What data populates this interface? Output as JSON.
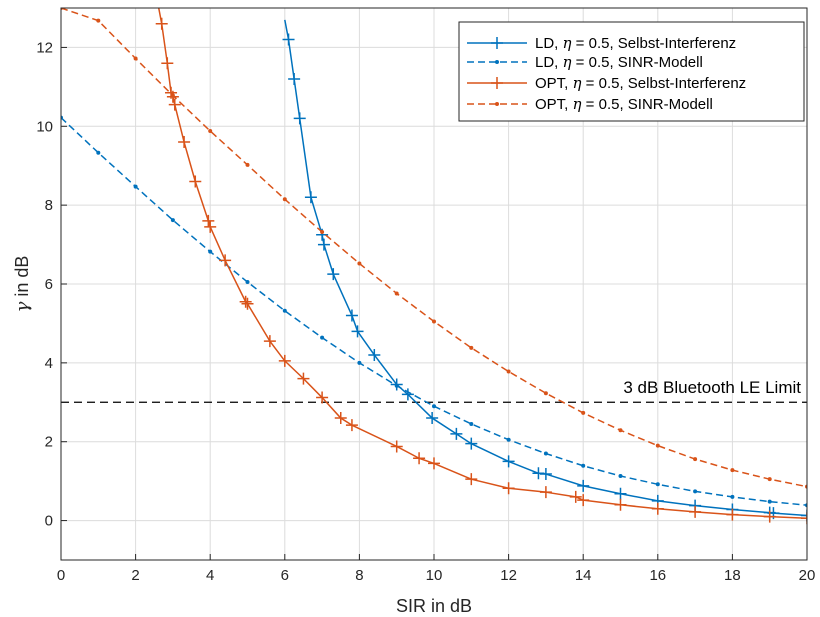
{
  "chart_data": {
    "type": "line",
    "xlabel": "SIR in dB",
    "ylabel_symbol": "γ",
    "ylabel_text": " in dB",
    "xlim": [
      0,
      20
    ],
    "ylim": [
      -1,
      13
    ],
    "xticks": [
      "0",
      "2",
      "4",
      "6",
      "8",
      "10",
      "12",
      "14",
      "16",
      "18",
      "20"
    ],
    "yticks": [
      "0",
      "2",
      "4",
      "6",
      "8",
      "10",
      "12"
    ],
    "grid": true,
    "legend_position": "top-right",
    "annotation": {
      "text": "3 dB Bluetooth LE Limit",
      "y": 3
    },
    "colors": {
      "ld": "#0072BD",
      "opt": "#D95319",
      "limit": "#000000",
      "grid": "#dcdcdc"
    },
    "series": [
      {
        "key": "ld_self",
        "legend_prefix": "LD, ",
        "legend_eta": "η",
        "legend_suffix": " = 0.5, Selbst-Interferenz",
        "color": "#0072BD",
        "dash": "solid",
        "marker": "plus",
        "x": [
          6.0,
          6.1,
          6.25,
          6.4,
          6.7,
          7.0,
          7.05,
          7.3,
          7.8,
          7.95,
          8.4,
          9.0,
          9.3,
          9.95,
          10.6,
          11.0,
          12.0,
          12.8,
          13.0,
          14.0,
          15.0,
          16.0,
          17.0,
          18.0,
          19.0,
          19.1,
          20.0
        ],
        "y": [
          12.7,
          12.2,
          11.2,
          10.2,
          8.2,
          7.25,
          7.0,
          6.25,
          5.2,
          4.8,
          4.2,
          3.45,
          3.2,
          2.6,
          2.2,
          1.95,
          1.5,
          1.2,
          1.18,
          0.88,
          0.68,
          0.5,
          0.38,
          0.28,
          0.2,
          0.19,
          0.13
        ],
        "marker_skip_first": true
      },
      {
        "key": "ld_sinr",
        "legend_prefix": "LD, ",
        "legend_eta": "η",
        "legend_suffix": " = 0.5, SINR-Modell",
        "color": "#0072BD",
        "dash": "dashed",
        "marker": "dot",
        "x": [
          0,
          1,
          2,
          3,
          4,
          5,
          6,
          7,
          8,
          9,
          10,
          11,
          12,
          13,
          14,
          15,
          16,
          17,
          18,
          19,
          20
        ],
        "y": [
          10.22,
          9.33,
          8.47,
          7.62,
          6.82,
          6.05,
          5.32,
          4.64,
          4.0,
          3.42,
          2.9,
          2.45,
          2.05,
          1.7,
          1.39,
          1.13,
          0.92,
          0.74,
          0.6,
          0.48,
          0.39
        ]
      },
      {
        "key": "opt_self",
        "legend_prefix": "OPT, ",
        "legend_eta": "η",
        "legend_suffix": " = 0.5, Selbst-Interferenz",
        "color": "#D95319",
        "dash": "solid",
        "marker": "plus",
        "x": [
          2.6,
          2.7,
          2.85,
          2.95,
          3.0,
          3.05,
          3.3,
          3.6,
          3.95,
          4.0,
          4.4,
          4.95,
          5.0,
          5.6,
          6.0,
          6.5,
          7.0,
          7.5,
          7.8,
          9.0,
          9.6,
          10.0,
          11.0,
          12.0,
          13.0,
          13.8,
          14.0,
          15.0,
          16.0,
          17.0,
          18.0,
          19.0,
          20.0
        ],
        "y": [
          13.1,
          12.6,
          11.6,
          10.85,
          10.75,
          10.55,
          9.6,
          8.6,
          7.6,
          7.45,
          6.6,
          5.55,
          5.5,
          4.55,
          4.05,
          3.6,
          3.12,
          2.6,
          2.42,
          1.88,
          1.58,
          1.45,
          1.05,
          0.82,
          0.72,
          0.6,
          0.52,
          0.4,
          0.3,
          0.22,
          0.15,
          0.1,
          0.06
        ],
        "marker_skip_first": true
      },
      {
        "key": "opt_sinr",
        "legend_prefix": "OPT, ",
        "legend_eta": "η",
        "legend_suffix": " = 0.5, SINR-Modell",
        "color": "#D95319",
        "dash": "dashed",
        "marker": "dot",
        "x": [
          0,
          1,
          2,
          3,
          4,
          5,
          6,
          7,
          8,
          9,
          10,
          11,
          12,
          13,
          14,
          15,
          16,
          17,
          18,
          19,
          20
        ],
        "y": [
          13.0,
          12.68,
          11.72,
          10.78,
          9.88,
          9.02,
          8.15,
          7.32,
          6.52,
          5.76,
          5.05,
          4.38,
          3.78,
          3.23,
          2.73,
          2.29,
          1.9,
          1.56,
          1.28,
          1.05,
          0.86
        ]
      }
    ]
  }
}
